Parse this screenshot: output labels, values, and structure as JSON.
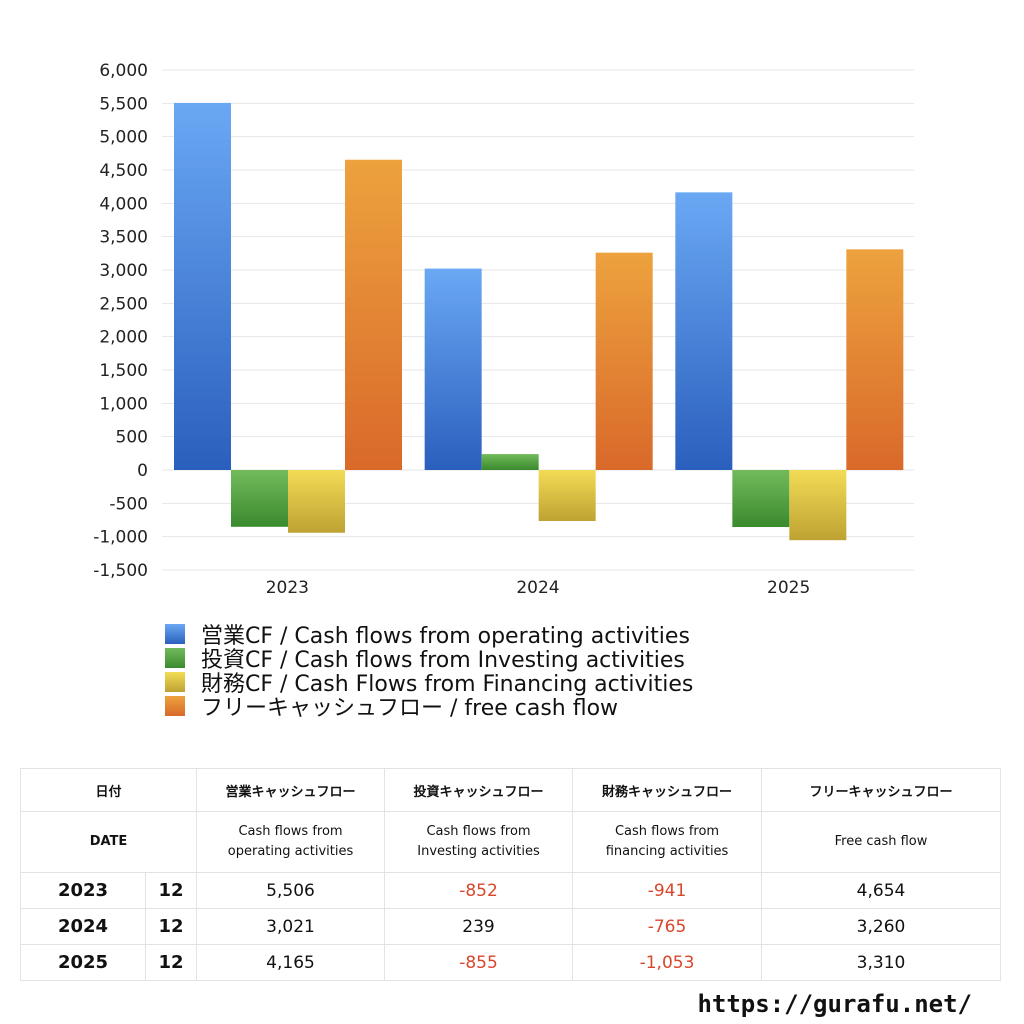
{
  "chart_data": {
    "type": "bar",
    "categories": [
      "2023",
      "2024",
      "2025"
    ],
    "ylim": [
      -1500,
      6000
    ],
    "ytick_step": 500,
    "grid": true,
    "legend_position": "bottom",
    "series": [
      {
        "name": "営業CF / Cash flows from operating activities",
        "values": [
          5506,
          3021,
          4165
        ],
        "color_top": "#6aa8f4",
        "color_bottom": "#2b5fbd"
      },
      {
        "name": "投資CF / Cash flows from Investing activities",
        "values": [
          -852,
          239,
          -855
        ],
        "color_top": "#72bb5c",
        "color_bottom": "#3a8a2e"
      },
      {
        "name": "財務CF / Cash Flows from Financing activities",
        "values": [
          -941,
          -765,
          -1053
        ],
        "color_top": "#f2dc55",
        "color_bottom": "#bea233"
      },
      {
        "name": "フリーキャッシュフロー / free cash flow",
        "values": [
          4654,
          3260,
          3310
        ],
        "color_top": "#eda23e",
        "color_bottom": "#d9692a"
      }
    ],
    "yticks": [
      "6,000",
      "5,500",
      "5,000",
      "4,500",
      "4,000",
      "3,500",
      "3,000",
      "2,500",
      "2,000",
      "1,500",
      "1,000",
      "500",
      "0",
      "-500",
      "-1,000",
      "-1,500"
    ]
  },
  "table": {
    "header1": {
      "date": "日付",
      "op": "営業キャッシュフロー",
      "inv": "投資キャッシュフロー",
      "fin": "財務キャッシュフロー",
      "free": "フリーキャッシュフロー"
    },
    "header2": {
      "date": "DATE",
      "op_1": "Cash flows from",
      "op_2": "operating activities",
      "inv_1": "Cash flows from",
      "inv_2": "Investing activities",
      "fin_1": "Cash flows from",
      "fin_2": "financing activities",
      "free": "Free cash flow"
    },
    "rows": [
      {
        "year": "2023",
        "month": "12",
        "op": "5,506",
        "inv": "-852",
        "fin": "-941",
        "free": "4,654"
      },
      {
        "year": "2024",
        "month": "12",
        "op": "3,021",
        "inv": "239",
        "fin": "-765",
        "free": "3,260"
      },
      {
        "year": "2025",
        "month": "12",
        "op": "4,165",
        "inv": "-855",
        "fin": "-1,053",
        "free": "3,310"
      }
    ],
    "negative_color": "#d9472b"
  },
  "footer": {
    "url": "https://gurafu.net/"
  }
}
